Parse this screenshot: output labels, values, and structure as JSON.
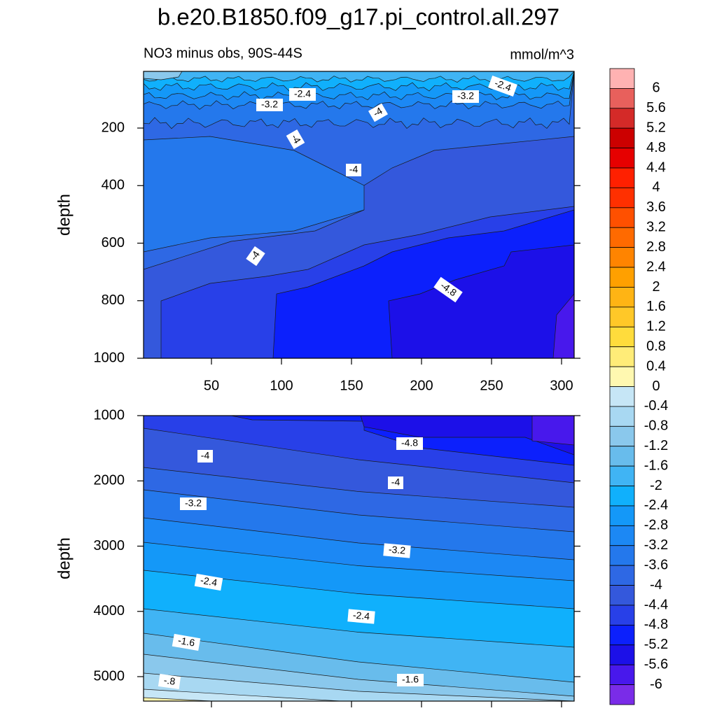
{
  "chart_data": [
    {
      "type": "contour",
      "title": "b.e20.B1850.f09_g17.pi_control.all.297",
      "subtitle": "NO3 minus obs, 90S-44S",
      "units": "mmol/m^3",
      "ylabel": "depth",
      "xlim": [
        1.5,
        309
      ],
      "xticks": [
        50,
        100,
        150,
        200,
        250,
        300
      ],
      "xtick_labels": true,
      "ylim": [
        3,
        1000
      ],
      "yticks": [
        200,
        400,
        600,
        800,
        1000
      ],
      "y_inverted": true,
      "contour_labels": [
        "-2.4",
        "-3.2",
        "-4",
        "-4",
        "-4",
        "-4",
        "-4.8",
        "-3.2",
        "-2.4"
      ]
    },
    {
      "type": "contour",
      "ylabel": "depth",
      "xlim": [
        1.5,
        309
      ],
      "xticks": [
        50,
        100,
        150,
        200,
        250,
        300
      ],
      "xtick_labels": false,
      "ylim": [
        1000,
        5375
      ],
      "yticks": [
        1000,
        2000,
        3000,
        4000,
        5000
      ],
      "y_inverted": true,
      "contour_labels": [
        "-4",
        "-4.8",
        "-4",
        "-3.2",
        "-3.2",
        "-2.4",
        "-2.4",
        "-1.6",
        "-1.6",
        "-.8"
      ]
    }
  ],
  "colorbar": {
    "levels": [
      6,
      5.6,
      5.2,
      4.8,
      4.4,
      4,
      3.6,
      3.2,
      2.8,
      2.4,
      2,
      1.6,
      1.2,
      0.8,
      0.4,
      0,
      -0.4,
      -0.8,
      -1.2,
      -1.6,
      -2,
      -2.4,
      -2.8,
      -3.2,
      -3.6,
      -4,
      -4.4,
      -4.8,
      -5.2,
      -5.6,
      -6
    ],
    "colors": [
      "#ffb2b2",
      "#e8605c",
      "#d42a28",
      "#cc0000",
      "#e60000",
      "#ff2000",
      "#ff3000",
      "#ff5000",
      "#ff6a00",
      "#ff8400",
      "#ffa000",
      "#ffb414",
      "#ffc828",
      "#ffdc3c",
      "#ffec78",
      "#fff8b0",
      "#c6e6f6",
      "#a8d8f2",
      "#8ac8ec",
      "#68bcec",
      "#40b4f4",
      "#10b0fc",
      "#1498f8",
      "#1c88f4",
      "#2478ec",
      "#2e68e4",
      "#3458dc",
      "#2840e8",
      "#0c20fc",
      "#1c10e8",
      "#4818ec",
      "#7a2ce8"
    ]
  }
}
